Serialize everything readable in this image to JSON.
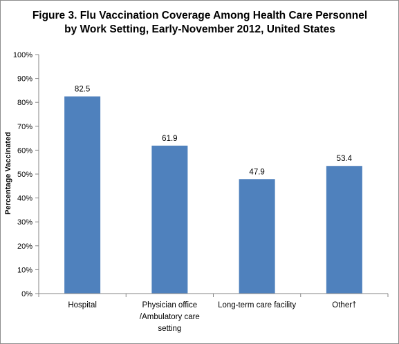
{
  "chart_data": {
    "type": "bar",
    "title_lines": [
      "Figure 3. Flu Vaccination Coverage Among Health Care Personnel",
      "by Work Setting, Early-November 2012, United States"
    ],
    "ylabel": "Percentage Vaccinated",
    "xlabel": "",
    "ylim": [
      0,
      100
    ],
    "y_ticks": [
      "0%",
      "10%",
      "20%",
      "30%",
      "40%",
      "50%",
      "60%",
      "70%",
      "80%",
      "90%",
      "100%"
    ],
    "categories": [
      [
        "Hospital"
      ],
      [
        "Physician office",
        "/Ambulatory care",
        "setting"
      ],
      [
        "Long-term care facility"
      ],
      [
        "Other†"
      ]
    ],
    "values": [
      82.5,
      61.9,
      47.9,
      53.4
    ],
    "data_labels": [
      "82.5",
      "61.9",
      "47.9",
      "53.4"
    ],
    "bar_color": "#4f81bd",
    "grid": false,
    "legend": "none"
  }
}
